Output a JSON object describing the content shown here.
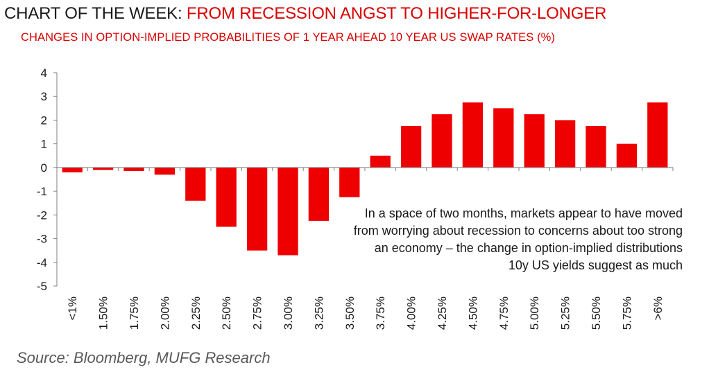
{
  "header": {
    "title_prefix": "CHART OF THE WEEK:",
    "title_main": "FROM RECESSION ANGST TO HIGHER-FOR-LONGER",
    "subtitle": "CHANGES IN OPTION-IMPLIED PROBABILITIES OF 1 YEAR AHEAD 10 YEAR US SWAP RATES (%)"
  },
  "annotation": "In a space of two months, markets appear to have moved from worrying about recession to concerns about too strong an economy – the change in option-implied distributions 10y US yields suggest as much",
  "source": "Source: Bloomberg, MUFG Research",
  "colors": {
    "bar": "#ee0000",
    "title_accent": "#d90000",
    "axis": "#7f7f7f"
  },
  "chart_data": {
    "type": "bar",
    "categories": [
      "<1%",
      "1.50%",
      "1.75%",
      "2.00%",
      "2.25%",
      "2.50%",
      "2.75%",
      "3.00%",
      "3.25%",
      "3.50%",
      "3.75%",
      "4.00%",
      "4.25%",
      "4.50%",
      "4.75%",
      "5.00%",
      "5.25%",
      "5.50%",
      "5.75%",
      ">6%"
    ],
    "values": [
      -0.2,
      -0.1,
      -0.15,
      -0.3,
      -1.4,
      -2.5,
      -3.5,
      -3.7,
      -2.25,
      -1.25,
      0.5,
      1.75,
      2.25,
      2.75,
      2.5,
      2.25,
      2.0,
      1.75,
      1.0,
      2.75
    ],
    "ylim": [
      -5,
      4
    ],
    "yticks": [
      4,
      3,
      2,
      1,
      0,
      -1,
      -2,
      -3,
      -4,
      -5
    ],
    "xlabel": "",
    "ylabel": ""
  }
}
